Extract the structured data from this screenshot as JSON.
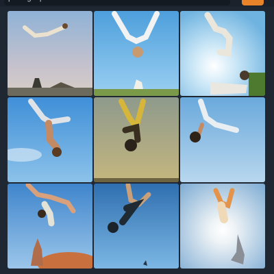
{
  "prompt": {
    "value": "p... ...g ...p..."
  },
  "generate_button": {
    "label": ""
  },
  "results": {
    "count": 9,
    "images": [
      {
        "subject": "person doing a backflip in the air, wide sky"
      },
      {
        "subject": "person upside down mid-flip, bright blue sky"
      },
      {
        "subject": "person flipping above a ground figure, sunny sky"
      },
      {
        "subject": "person somersaulting, blue sky with clouds"
      },
      {
        "subject": "person in yellow pants flipping, hazy golden sky"
      },
      {
        "subject": "person falling head-first, pale blue sky"
      },
      {
        "subject": "two people flipping above trees, blue sky"
      },
      {
        "subject": "silhouette flipping, deep blue sky"
      },
      {
        "subject": "silhouettes flipping against a bright sun"
      }
    ]
  },
  "colors": {
    "background": "#1f2733",
    "accent": "#e8832a"
  }
}
